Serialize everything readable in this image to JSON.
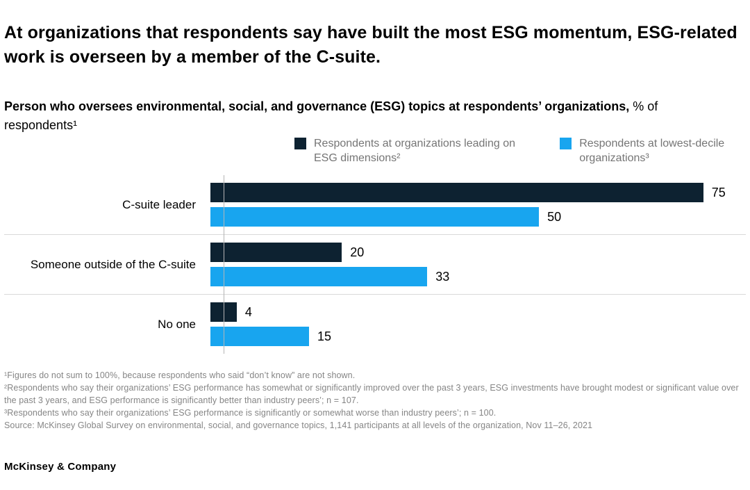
{
  "title": "At organizations that respondents say have built the most ESG momentum, ESG-related work is overseen by a member of the C-suite.",
  "subtitle": {
    "bold": "Person who oversees environmental, social, and governance (ESG) topics at respondents’ organizations,",
    "regular": " % of respondents¹"
  },
  "legend": [
    {
      "label": "Respondents at organizations leading on ESG dimensions²",
      "color": "#0d2231",
      "icon": "dark-navy-swatch"
    },
    {
      "label": "Respondents at lowest-decile organizations³",
      "color": "#18a5ef",
      "icon": "light-blue-swatch"
    }
  ],
  "chart_data": {
    "type": "bar",
    "orientation": "horizontal",
    "title": "Person who oversees ESG topics at respondents’ organizations, % of respondents",
    "categories": [
      "C-suite leader",
      "Someone outside of the C-suite",
      "No one"
    ],
    "series": [
      {
        "name": "Respondents at organizations leading on ESG dimensions²",
        "color": "#0d2231",
        "values": [
          75,
          20,
          4
        ]
      },
      {
        "name": "Respondents at lowest-decile organizations³",
        "color": "#18a5ef",
        "values": [
          50,
          33,
          15
        ]
      }
    ],
    "xlim": [
      0,
      80
    ],
    "value_labels": true,
    "grid": false,
    "legend_position": "top",
    "row_divider_color": "#d9d9d9",
    "axis_line_color": "#b5b5b5"
  },
  "footnotes": [
    "¹Figures do not sum to 100%, because respondents who said “don’t know” are not shown.",
    "²Respondents who say their organizations’ ESG performance has somewhat or significantly improved over the past 3 years, ESG investments have brought modest or significant value over the past 3 years, and ESG performance is significantly better than industry peers’; n = 107.",
    "³Respondents who say their organizations’ ESG performance is significantly or somewhat worse than industry peers’; n = 100."
  ],
  "source": "Source: McKinsey Global Survey on environmental, social, and governance topics, 1,141 participants at all levels of the organization, Nov 11–26, 2021",
  "logo": "McKinsey & Company"
}
